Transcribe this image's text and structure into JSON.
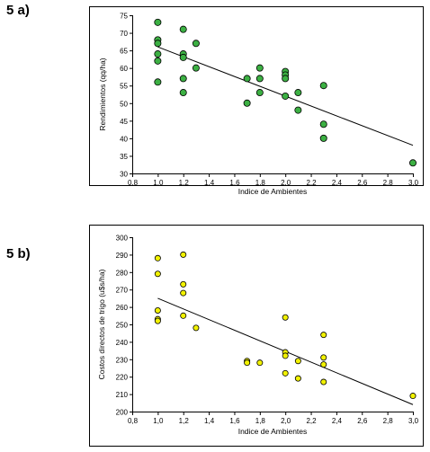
{
  "panels": [
    {
      "label": "5 a)"
    },
    {
      "label": "5 b)"
    }
  ],
  "chart_data": [
    {
      "type": "scatter",
      "xlabel": "Indice de Ambientes",
      "ylabel": "Rendimientos (qq/ha)",
      "xlim": [
        0.8,
        3.0
      ],
      "ylim": [
        30,
        75
      ],
      "xticks": [
        "0,8",
        "1,0",
        "1,2",
        "1,4",
        "1,6",
        "1,8",
        "2,0",
        "2,2",
        "2,4",
        "2,6",
        "2,8",
        "3,0"
      ],
      "yticks": [
        "30",
        "35",
        "40",
        "45",
        "50",
        "55",
        "60",
        "65",
        "70",
        "75"
      ],
      "marker_color": "#3cb043",
      "points": [
        [
          1.0,
          73
        ],
        [
          1.0,
          68
        ],
        [
          1.0,
          67
        ],
        [
          1.0,
          64
        ],
        [
          1.0,
          62
        ],
        [
          1.0,
          56
        ],
        [
          1.2,
          71
        ],
        [
          1.2,
          64
        ],
        [
          1.2,
          63
        ],
        [
          1.2,
          57
        ],
        [
          1.2,
          53
        ],
        [
          1.3,
          67
        ],
        [
          1.3,
          60
        ],
        [
          1.7,
          57
        ],
        [
          1.7,
          50
        ],
        [
          1.8,
          60
        ],
        [
          1.8,
          57
        ],
        [
          1.8,
          53
        ],
        [
          2.0,
          59
        ],
        [
          2.0,
          58
        ],
        [
          2.0,
          57
        ],
        [
          2.0,
          52
        ],
        [
          2.1,
          53
        ],
        [
          2.1,
          48
        ],
        [
          2.3,
          55
        ],
        [
          2.3,
          44
        ],
        [
          2.3,
          40
        ],
        [
          3.0,
          33
        ]
      ],
      "trendline": {
        "x": [
          1.0,
          3.0
        ],
        "y": [
          66,
          38
        ]
      }
    },
    {
      "type": "scatter",
      "xlabel": "Indice de Ambientes",
      "ylabel": "Costos directos de trigo (u$s/ha)",
      "xlim": [
        0.8,
        3.0
      ],
      "ylim": [
        200,
        300
      ],
      "xticks": [
        "0,8",
        "1,0",
        "1,2",
        "1,4",
        "1,6",
        "1,8",
        "2,0",
        "2,2",
        "2,4",
        "2,6",
        "2,8",
        "3,0"
      ],
      "yticks": [
        "200",
        "210",
        "220",
        "230",
        "240",
        "250",
        "260",
        "270",
        "280",
        "290",
        "300"
      ],
      "marker_color": "#f2f200",
      "points": [
        [
          1.0,
          288
        ],
        [
          1.0,
          279
        ],
        [
          1.0,
          258
        ],
        [
          1.0,
          253
        ],
        [
          1.0,
          252
        ],
        [
          1.2,
          290
        ],
        [
          1.2,
          273
        ],
        [
          1.2,
          268
        ],
        [
          1.2,
          255
        ],
        [
          1.3,
          248
        ],
        [
          1.7,
          229
        ],
        [
          1.7,
          228
        ],
        [
          1.8,
          228
        ],
        [
          2.0,
          254
        ],
        [
          2.0,
          234
        ],
        [
          2.0,
          232
        ],
        [
          2.0,
          222
        ],
        [
          2.1,
          229
        ],
        [
          2.1,
          219
        ],
        [
          2.3,
          244
        ],
        [
          2.3,
          231
        ],
        [
          2.3,
          227
        ],
        [
          2.3,
          217
        ],
        [
          3.0,
          209
        ]
      ],
      "trendline": {
        "x": [
          1.0,
          3.0
        ],
        "y": [
          265,
          204
        ]
      }
    }
  ]
}
